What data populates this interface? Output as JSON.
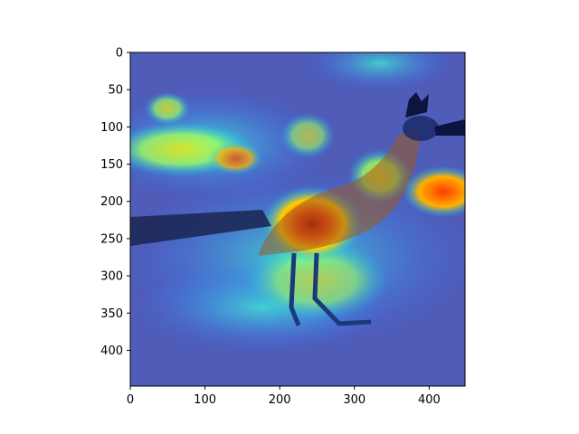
{
  "figure": {
    "description_kind": "heatmap overlay on photo",
    "image_extent": {
      "x": [
        0,
        448
      ],
      "y": [
        0,
        448
      ]
    }
  },
  "axes": {
    "x_ticks": [
      0,
      100,
      200,
      300,
      400
    ],
    "y_ticks": [
      0,
      50,
      100,
      150,
      200,
      250,
      300,
      350,
      400
    ]
  }
}
